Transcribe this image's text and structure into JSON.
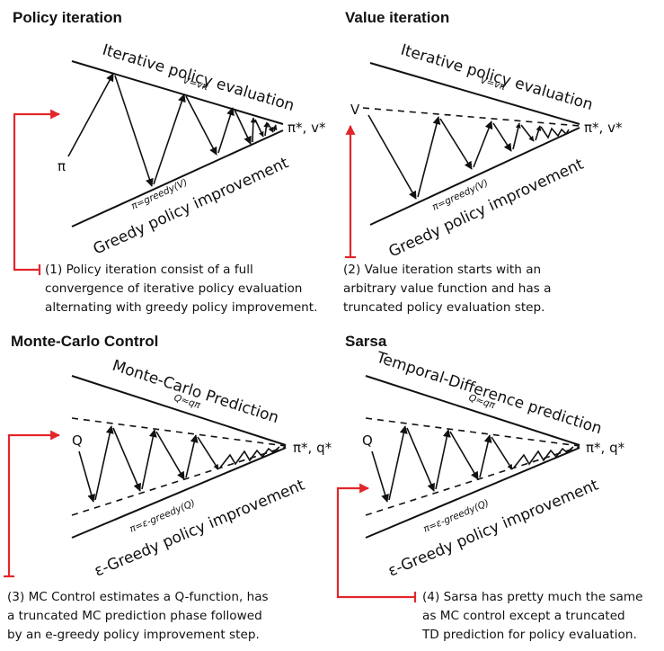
{
  "panels": {
    "policy_iteration": {
      "title": "Policy iteration",
      "top_label": "Iterative policy evaluation",
      "top_eq": "V=vπ",
      "bottom_label": "Greedy policy improvement",
      "bottom_eq": "π=greedy(V)",
      "start": "π",
      "end": "π*, v*",
      "caption": "(1) Policy iteration consist of a full\nconvergence of iterative policy evaluation\nalternating with greedy policy improvement."
    },
    "value_iteration": {
      "title": "Value iteration",
      "top_label": "Iterative policy evaluation",
      "top_eq": "V=vπ",
      "bottom_label": "Greedy policy improvement",
      "bottom_eq": "π=greedy(V)",
      "start": "V",
      "end": "π*, v*",
      "caption": "(2) Value iteration starts with an\narbitrary value function and has a\ntruncated policy evaluation step."
    },
    "mc_control": {
      "title": "Monte-Carlo Control",
      "top_label": "Monte-Carlo Prediction",
      "top_eq": "Q≈qπ",
      "bottom_label": "ε-Greedy policy improvement",
      "bottom_eq": "π=ε-greedy(Q)",
      "start": "Q",
      "end": "π*, q*",
      "caption": "(3) MC Control estimates a Q-function, has\na truncated MC prediction phase followed\nby an e-greedy policy improvement step."
    },
    "sarsa": {
      "title": "Sarsa",
      "top_label": "Temporal-Difference prediction",
      "top_eq": "Q≈qπ",
      "bottom_label": "ε-Greedy policy improvement",
      "bottom_eq": "π=ε-greedy(Q)",
      "start": "Q",
      "end": "π*, q*",
      "caption": "(4) Sarsa has pretty much the same\nas MC control except a truncated\nTD prediction for policy evaluation."
    }
  },
  "colors": {
    "line": "#111111",
    "accent": "#e3262b"
  }
}
